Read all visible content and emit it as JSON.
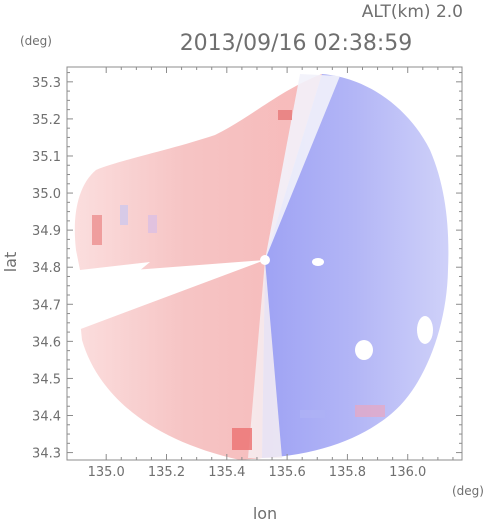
{
  "header": {
    "altitude_label": "ALT(km) 2.0",
    "timestamp": "2013/09/16 02:38:59",
    "y_unit": "(deg)",
    "x_unit": "(deg)"
  },
  "chart_data": {
    "type": "heatmap",
    "title": "",
    "xlabel": "lon",
    "ylabel": "lat",
    "xlim": [
      134.87,
      136.18
    ],
    "ylim": [
      34.28,
      35.34
    ],
    "x_ticks": [
      "135.0",
      "135.2",
      "135.4",
      "135.6",
      "135.8",
      "136.0"
    ],
    "x_tick_values": [
      135.0,
      135.2,
      135.4,
      135.6,
      135.8,
      136.0
    ],
    "y_ticks": [
      "35.3",
      "35.2",
      "35.1",
      "35.0",
      "34.9",
      "34.8",
      "34.7",
      "34.6",
      "34.5",
      "34.4",
      "34.3"
    ],
    "y_tick_values": [
      35.3,
      35.2,
      35.1,
      35.0,
      34.9,
      34.8,
      34.7,
      34.6,
      34.5,
      34.4,
      34.3
    ],
    "radar_center": {
      "lon": 135.52,
      "lat": 34.82
    },
    "grid": false,
    "colors": {
      "approaching": "#f3a6a6",
      "receding": "#8f93f2",
      "neutral": "#ffffff",
      "axis": "#8c8c8c"
    }
  }
}
